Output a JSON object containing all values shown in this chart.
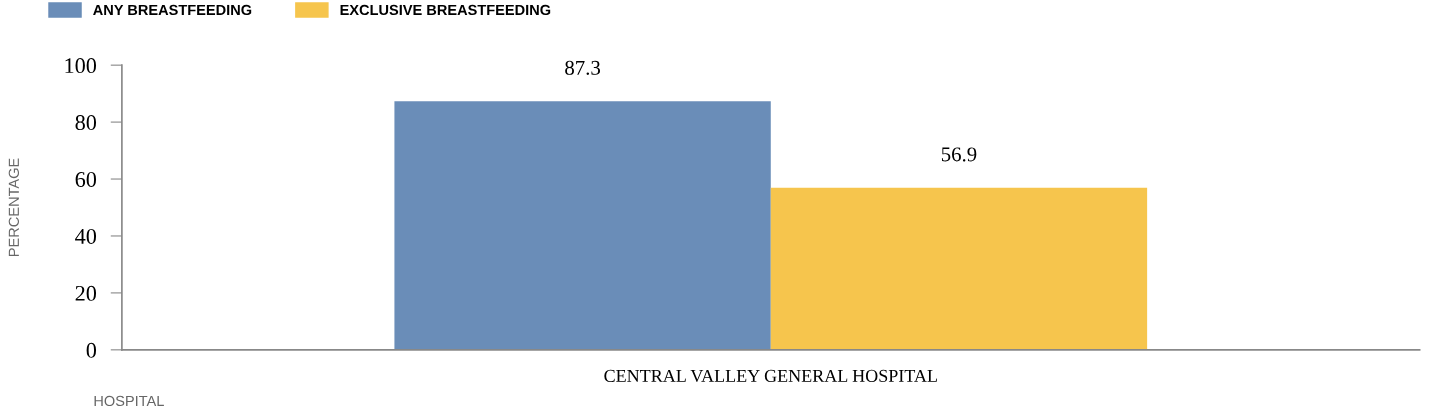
{
  "chart_data": {
    "type": "bar",
    "categories": [
      "CENTRAL VALLEY GENERAL HOSPITAL"
    ],
    "series": [
      {
        "name": "ANY BREASTFEEDING",
        "color": "#6a8db8",
        "values": [
          87.3
        ]
      },
      {
        "name": "EXCLUSIVE BREASTFEEDING",
        "color": "#f6c54d",
        "values": [
          56.9
        ]
      }
    ],
    "xlabel": "HOSPITAL",
    "ylabel": "PERCENTAGE",
    "ylim": [
      0,
      100
    ],
    "yticks": [
      0,
      20,
      40,
      60,
      80,
      100
    ],
    "data_labels": true,
    "legend": "top left",
    "grid": false
  }
}
